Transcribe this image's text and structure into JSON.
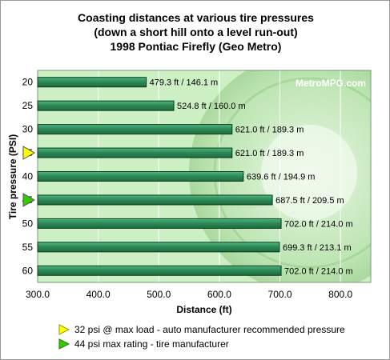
{
  "chart_data": {
    "type": "bar",
    "orientation": "horizontal",
    "title": [
      "Coasting distances at various tire pressures",
      "(down a short hill onto a level run-out)",
      "1998 Pontiac Firefly (Geo Metro)"
    ],
    "xlabel": "Distance (ft)",
    "ylabel": "Tire pressure (PSI)",
    "xlim": [
      300,
      850
    ],
    "x_ticks": [
      "300.0",
      "400.0",
      "500.0",
      "600.0",
      "700.0",
      "800.0"
    ],
    "x_tick_values": [
      300,
      400,
      500,
      600,
      700,
      800
    ],
    "categories": [
      "20",
      "25",
      "30",
      "35",
      "40",
      "45",
      "50",
      "55",
      "60"
    ],
    "values": [
      479.3,
      524.8,
      621.0,
      621.0,
      639.6,
      687.5,
      702.0,
      699.3,
      702.0
    ],
    "data_labels": [
      "479.3 ft / 146.1 m",
      "524.8 ft / 160.0 m",
      "621.0 ft / 189.3 m",
      "621.0 ft / 189.3 m",
      "639.6 ft / 194.9 m",
      "687.5 ft / 209.5 m",
      "702.0 ft / 214.0 m",
      "699.3 ft / 213.1 m",
      "702.0 ft / 214.0 m"
    ],
    "grid": "vertical",
    "bar_color": "#2e8b57",
    "plot_background": "#ccf0c4",
    "watermark": "MetroMPG.com",
    "markers": [
      {
        "category": "35",
        "color": "#ffff00",
        "shape": "triangle-right"
      },
      {
        "category": "45",
        "color": "#33cc00",
        "shape": "triangle-right"
      }
    ]
  },
  "legend": [
    {
      "icon": "yellow-triangle-icon",
      "color": "#ffff00",
      "label": "32 psi @ max load - auto manufacturer recommended pressure"
    },
    {
      "icon": "green-triangle-icon",
      "color": "#33cc00",
      "label": "44 psi max rating - tire manufacturer"
    }
  ]
}
